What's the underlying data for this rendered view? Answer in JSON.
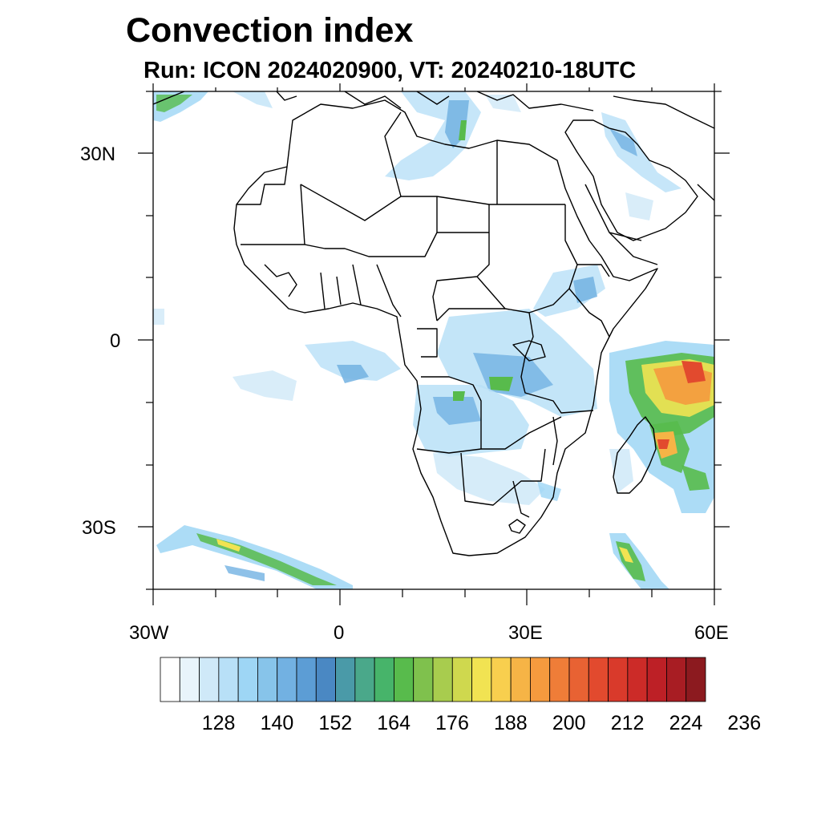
{
  "title": "Convection index",
  "subtitle": "Run: ICON 2024020900,  VT: 20240210-18UTC",
  "axes": {
    "lat_labels": [
      "30N",
      "0",
      "30S"
    ],
    "lon_labels": [
      "30W",
      "0",
      "30E",
      "60E"
    ]
  },
  "colorbar": {
    "colors": [
      "#ffffff",
      "#e8f4fb",
      "#cfe9f8",
      "#b8e0f7",
      "#9ed6f5",
      "#87c4ea",
      "#72b1e2",
      "#5c9dd5",
      "#4a88c3",
      "#4a9aa8",
      "#4aa88a",
      "#47b46a",
      "#58bb4c",
      "#7fc14d",
      "#a8cc4e",
      "#cfd84e",
      "#f1e352",
      "#f8cf4e",
      "#f6b446",
      "#f59a3e",
      "#ef7d38",
      "#e86233",
      "#e24a2e",
      "#d93a2b",
      "#cc2b28",
      "#bd2026",
      "#a81d23",
      "#8c1a1f"
    ],
    "tick_labels": [
      "128",
      "140",
      "152",
      "164",
      "176",
      "188",
      "200",
      "212",
      "224",
      "236"
    ]
  }
}
